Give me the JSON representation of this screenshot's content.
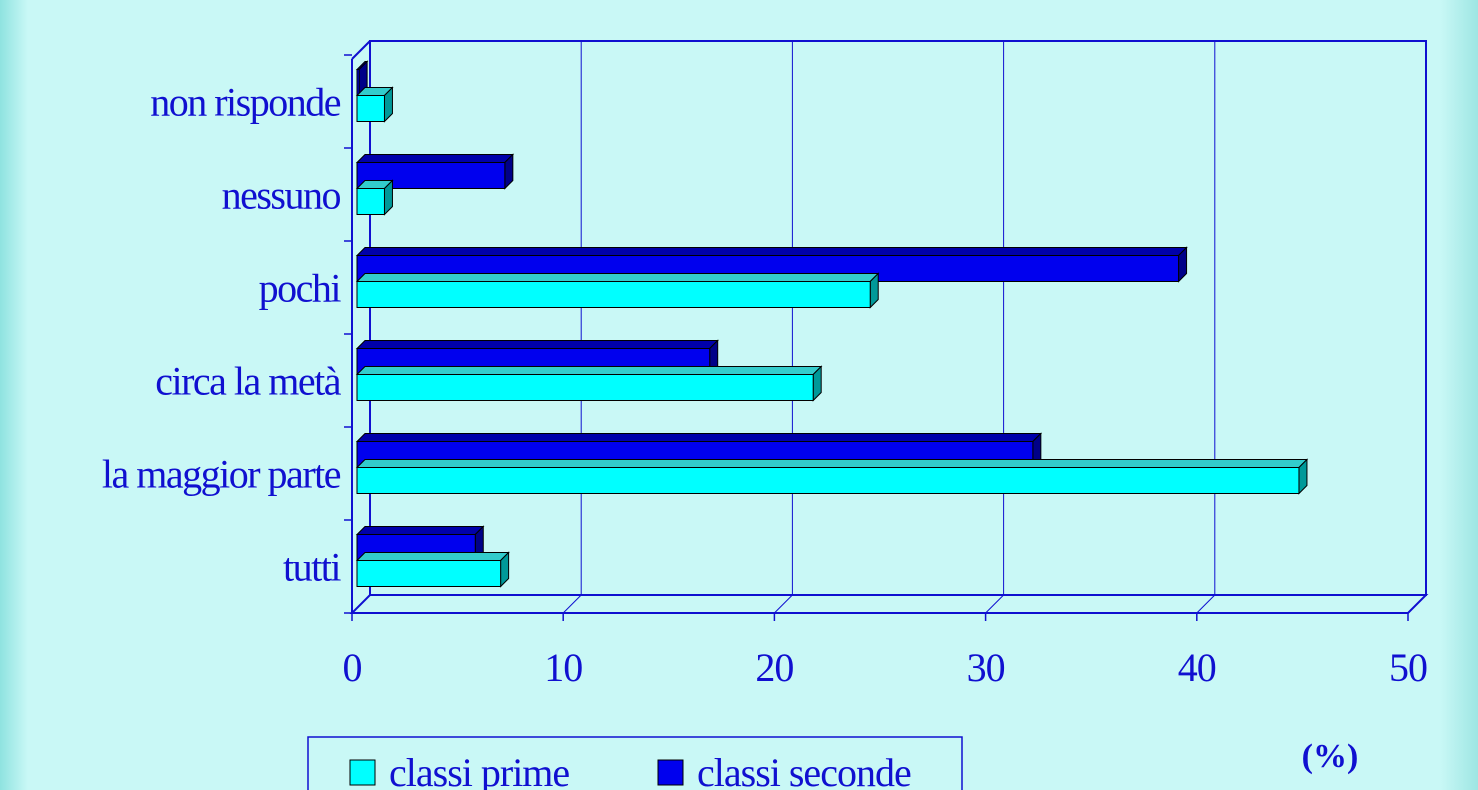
{
  "chart_data": {
    "type": "bar",
    "orientation": "horizontal",
    "categories": [
      "tutti",
      "la maggior parte",
      "circa la metà",
      "pochi",
      "nessuno",
      "non risponde"
    ],
    "series": [
      {
        "name": "classi prime",
        "values": [
          6.8,
          44.6,
          21.6,
          24.3,
          1.3,
          1.3
        ],
        "color": "#00ffff"
      },
      {
        "name": "classi seconde",
        "values": [
          5.6,
          32.0,
          16.7,
          38.9,
          7.0,
          0.1
        ],
        "color": "#0000ee"
      }
    ],
    "xlim": [
      0,
      50
    ],
    "xticks": [
      0,
      10,
      20,
      30,
      40,
      50
    ],
    "unit_label": "(%)",
    "grid": true,
    "legend_position": "bottom"
  }
}
